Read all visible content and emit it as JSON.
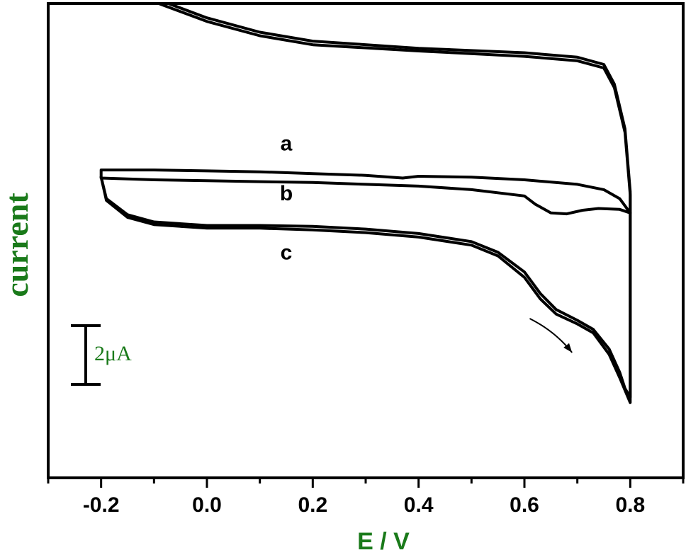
{
  "chart_data": {
    "type": "line",
    "xlabel": "E / V",
    "ylabel": "current",
    "xlim": [
      -0.3,
      0.9
    ],
    "ylim": [
      -14.0,
      12.5
    ],
    "x_ticks": [
      -0.2,
      0.0,
      0.2,
      0.4,
      0.6,
      0.8
    ],
    "x_tick_labels": [
      "-0.2",
      "0.0",
      "0.2",
      "0.4",
      "0.6",
      "0.8"
    ],
    "y_tick_labels": false,
    "grid": false,
    "scale_bar": {
      "label": "2μA",
      "value_uA": 2
    },
    "axis_color": "#000000",
    "label_color": "#1a7a1a",
    "series": [
      {
        "name": "a",
        "points": [
          [
            -0.2,
            3.2
          ],
          [
            -0.1,
            3.2
          ],
          [
            0.0,
            3.15
          ],
          [
            0.1,
            3.1
          ],
          [
            0.2,
            3.0
          ],
          [
            0.3,
            2.9
          ],
          [
            0.37,
            2.75
          ],
          [
            0.4,
            2.85
          ],
          [
            0.5,
            2.8
          ],
          [
            0.6,
            2.65
          ],
          [
            0.7,
            2.4
          ],
          [
            0.75,
            2.1
          ],
          [
            0.78,
            1.6
          ],
          [
            0.8,
            0.8
          ],
          [
            0.78,
            1.0
          ],
          [
            0.74,
            1.05
          ],
          [
            0.71,
            0.95
          ],
          [
            0.68,
            0.75
          ],
          [
            0.65,
            0.8
          ],
          [
            0.62,
            1.3
          ],
          [
            0.6,
            1.75
          ],
          [
            0.5,
            2.1
          ],
          [
            0.4,
            2.3
          ],
          [
            0.3,
            2.4
          ],
          [
            0.2,
            2.5
          ],
          [
            0.1,
            2.55
          ],
          [
            0.0,
            2.6
          ],
          [
            -0.1,
            2.65
          ],
          [
            -0.2,
            2.75
          ],
          [
            -0.2,
            3.2
          ]
        ]
      },
      {
        "name": "b",
        "points": [
          [
            -0.2,
            2.8
          ],
          [
            -0.19,
            1.6
          ],
          [
            -0.15,
            0.7
          ],
          [
            -0.1,
            0.3
          ],
          [
            0.0,
            0.1
          ],
          [
            0.1,
            0.1
          ],
          [
            0.2,
            0.05
          ],
          [
            0.3,
            -0.1
          ],
          [
            0.4,
            -0.35
          ],
          [
            0.5,
            -0.8
          ],
          [
            0.55,
            -1.4
          ],
          [
            0.6,
            -2.5
          ],
          [
            0.63,
            -3.7
          ],
          [
            0.66,
            -4.6
          ],
          [
            0.7,
            -5.2
          ],
          [
            0.73,
            -5.7
          ],
          [
            0.76,
            -6.8
          ],
          [
            0.78,
            -8.1
          ],
          [
            0.79,
            -9.0
          ],
          [
            0.8,
            -9.5
          ],
          [
            0.8,
            -3.5
          ],
          [
            0.8,
            2.0
          ],
          [
            0.79,
            5.5
          ],
          [
            0.77,
            8.0
          ],
          [
            0.75,
            9.1
          ],
          [
            0.7,
            9.5
          ],
          [
            0.6,
            9.75
          ],
          [
            0.4,
            10.0
          ],
          [
            0.2,
            10.4
          ],
          [
            0.1,
            10.9
          ],
          [
            0.0,
            11.7
          ],
          [
            -0.1,
            12.8
          ],
          [
            -0.2,
            14.8
          ]
        ]
      },
      {
        "name": "c",
        "points": [
          [
            -0.2,
            2.8
          ],
          [
            -0.19,
            1.5
          ],
          [
            -0.15,
            0.55
          ],
          [
            -0.1,
            0.15
          ],
          [
            0.0,
            -0.05
          ],
          [
            0.1,
            -0.05
          ],
          [
            0.2,
            -0.15
          ],
          [
            0.3,
            -0.3
          ],
          [
            0.4,
            -0.55
          ],
          [
            0.5,
            -1.0
          ],
          [
            0.55,
            -1.6
          ],
          [
            0.6,
            -2.8
          ],
          [
            0.63,
            -4.0
          ],
          [
            0.66,
            -4.85
          ],
          [
            0.7,
            -5.4
          ],
          [
            0.73,
            -5.9
          ],
          [
            0.76,
            -7.1
          ],
          [
            0.78,
            -8.4
          ],
          [
            0.8,
            -9.8
          ],
          [
            0.8,
            -3.6
          ],
          [
            0.8,
            1.8
          ],
          [
            0.79,
            5.3
          ],
          [
            0.77,
            7.8
          ],
          [
            0.75,
            8.9
          ],
          [
            0.7,
            9.3
          ],
          [
            0.6,
            9.55
          ],
          [
            0.4,
            9.85
          ],
          [
            0.2,
            10.2
          ],
          [
            0.1,
            10.7
          ],
          [
            0.0,
            11.5
          ],
          [
            -0.1,
            12.6
          ],
          [
            -0.2,
            14.6
          ]
        ]
      }
    ],
    "curve_labels": [
      {
        "text": "a",
        "x": 0.15,
        "y": 4.3
      },
      {
        "text": "b",
        "x": 0.15,
        "y": 1.5
      },
      {
        "text": "c",
        "x": 0.15,
        "y": -1.8
      }
    ],
    "arrow": {
      "from": [
        0.61,
        -5.1
      ],
      "to": [
        0.69,
        -7.0
      ]
    }
  }
}
